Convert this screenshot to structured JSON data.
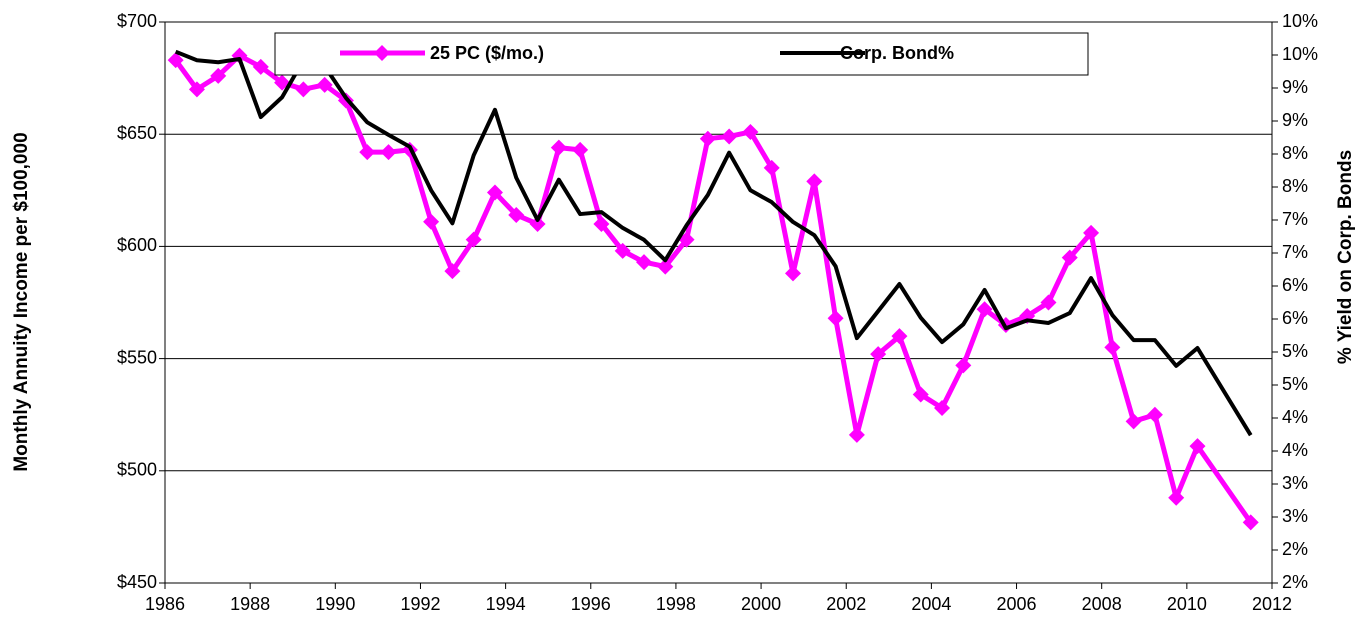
{
  "chart_data": {
    "type": "line",
    "ylabel": "Monthly Annuity Income per $100,000",
    "y2label": "% Yield on Corp. Bonds",
    "x": [
      1986.25,
      1986.75,
      1987.25,
      1987.75,
      1988.25,
      1988.75,
      1989.25,
      1989.75,
      1990.25,
      1990.75,
      1991.25,
      1991.75,
      1992.25,
      1992.75,
      1993.25,
      1993.75,
      1994.25,
      1994.75,
      1995.25,
      1995.75,
      1996.25,
      1996.75,
      1997.25,
      1997.75,
      1998.25,
      1998.75,
      1999.25,
      1999.75,
      2000.25,
      2000.75,
      2001.25,
      2001.75,
      2002.25,
      2002.75,
      2003.25,
      2003.75,
      2004.25,
      2004.75,
      2005.25,
      2005.75,
      2006.25,
      2006.75,
      2007.25,
      2007.75,
      2008.25,
      2008.75,
      2009.25,
      2009.75,
      2010.25,
      2011.5
    ],
    "series": [
      {
        "name": "25 PC ($/mo.)",
        "color": "#ff00ff",
        "marker": "diamond",
        "values": [
          683,
          670,
          676,
          685,
          680,
          673,
          670,
          672,
          665,
          642,
          642,
          643,
          611,
          589,
          603,
          624,
          614,
          610,
          644,
          643,
          610,
          598,
          593,
          591,
          603,
          648,
          649,
          651,
          635,
          588,
          629,
          568,
          516,
          552,
          560,
          534,
          528,
          547,
          572,
          565,
          569,
          575,
          595,
          606,
          555,
          522,
          525,
          488,
          511,
          477
        ]
      },
      {
        "name": "Corp. Bond%",
        "color": "#000000",
        "axis": "y2",
        "values": [
          9.8,
          9.67,
          9.64,
          9.69,
          8.81,
          9.11,
          9.67,
          9.58,
          9.1,
          8.73,
          8.54,
          8.36,
          7.7,
          7.2,
          8.23,
          8.92,
          7.89,
          7.25,
          7.86,
          7.34,
          7.37,
          7.13,
          6.95,
          6.64,
          7.17,
          7.63,
          8.27,
          7.7,
          7.52,
          7.22,
          7.02,
          6.55,
          5.46,
          5.87,
          6.28,
          5.77,
          5.4,
          5.67,
          6.19,
          5.61,
          5.73,
          5.69,
          5.84,
          6.37,
          5.81,
          5.43,
          5.43,
          5.04,
          5.31,
          3.99
        ]
      }
    ],
    "xlim": [
      1986,
      2012
    ],
    "xticks": [
      1986,
      1988,
      1990,
      1992,
      1994,
      1996,
      1998,
      2000,
      2002,
      2004,
      2006,
      2008,
      2010,
      2012
    ],
    "ylim": [
      450,
      700
    ],
    "yticks": [
      {
        "value": 450,
        "label": "$450"
      },
      {
        "value": 500,
        "label": "$500"
      },
      {
        "value": 550,
        "label": "$550"
      },
      {
        "value": 600,
        "label": "$600"
      },
      {
        "value": 650,
        "label": "$650"
      },
      {
        "value": 700,
        "label": "$700"
      }
    ],
    "y2lim": [
      1.75,
      10.25
    ],
    "y2ticks": [
      {
        "value": 1.75,
        "label": "2%"
      },
      {
        "value": 2.25,
        "label": "2%"
      },
      {
        "value": 2.75,
        "label": "3%"
      },
      {
        "value": 3.25,
        "label": "3%"
      },
      {
        "value": 3.75,
        "label": "4%"
      },
      {
        "value": 4.25,
        "label": "4%"
      },
      {
        "value": 4.75,
        "label": "5%"
      },
      {
        "value": 5.25,
        "label": "5%"
      },
      {
        "value": 5.75,
        "label": "6%"
      },
      {
        "value": 6.25,
        "label": "6%"
      },
      {
        "value": 6.75,
        "label": "7%"
      },
      {
        "value": 7.25,
        "label": "7%"
      },
      {
        "value": 7.75,
        "label": "8%"
      },
      {
        "value": 8.25,
        "label": "8%"
      },
      {
        "value": 8.75,
        "label": "9%"
      },
      {
        "value": 9.25,
        "label": "9%"
      },
      {
        "value": 9.75,
        "label": "10%"
      },
      {
        "value": 10.25,
        "label": "10%"
      }
    ],
    "grid": true,
    "legend": "top"
  }
}
